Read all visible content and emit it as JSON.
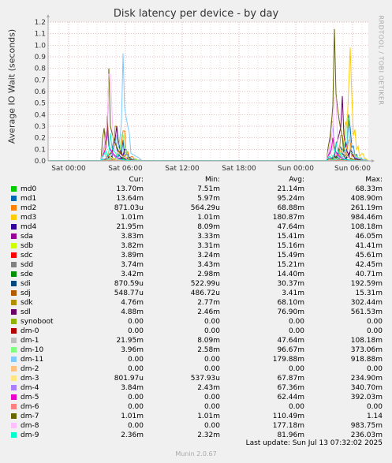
{
  "chart_data": {
    "type": "line",
    "title": "Disk latency per device - by day",
    "ylabel": "Average IO Wait (seconds)",
    "side_label": "RRDTOOL / TOBI OETIKER",
    "ylim": [
      0,
      1.2
    ],
    "yticks": [
      "0.0",
      "0.1",
      "0.2",
      "0.3",
      "0.4",
      "0.5",
      "0.6",
      "0.7",
      "0.8",
      "0.9",
      "1.0",
      "1.1",
      "1.2"
    ],
    "xticks": [
      "Sat 00:00",
      "Sat 06:00",
      "Sat 12:00",
      "Sat 18:00",
      "Sun 00:00",
      "Sun 06:00"
    ],
    "grid": true,
    "legend_columns": [
      "Cur:",
      "Min:",
      "Avg:",
      "Max:"
    ],
    "series": [
      {
        "name": "md0",
        "color": "#00cc00",
        "cur": "13.70m",
        "min": "7.51m",
        "avg": "21.14m",
        "max": "68.33m",
        "p1": 0.03,
        "p2": 0.05
      },
      {
        "name": "md1",
        "color": "#0066b3",
        "cur": "13.64m",
        "min": "5.97m",
        "avg": "95.24m",
        "max": "408.90m",
        "p1": 0.18,
        "p2": 0.4
      },
      {
        "name": "md2",
        "color": "#ff8000",
        "cur": "871.03u",
        "min": "564.29u",
        "avg": "68.88m",
        "max": "261.19m",
        "p1": 0.26,
        "p2": 0.18
      },
      {
        "name": "md3",
        "color": "#ffcc00",
        "cur": "1.01m",
        "min": "1.01m",
        "avg": "180.87m",
        "max": "984.46m",
        "p1": 0.05,
        "p2": 0.98
      },
      {
        "name": "md4",
        "color": "#330099",
        "cur": "21.95m",
        "min": "8.09m",
        "avg": "47.64m",
        "max": "108.18m",
        "p1": 0.1,
        "p2": 0.08
      },
      {
        "name": "sda",
        "color": "#990099",
        "cur": "3.83m",
        "min": "3.33m",
        "avg": "15.41m",
        "max": "46.05m",
        "p1": 0.04,
        "p2": 0.03
      },
      {
        "name": "sdb",
        "color": "#ccff00",
        "cur": "3.82m",
        "min": "3.31m",
        "avg": "15.16m",
        "max": "41.41m",
        "p1": 0.04,
        "p2": 0.03
      },
      {
        "name": "sdc",
        "color": "#ff0000",
        "cur": "3.89m",
        "min": "3.24m",
        "avg": "15.49m",
        "max": "45.61m",
        "p1": 0.04,
        "p2": 0.03
      },
      {
        "name": "sdd",
        "color": "#808080",
        "cur": "3.74m",
        "min": "3.43m",
        "avg": "15.21m",
        "max": "42.45m",
        "p1": 0.04,
        "p2": 0.03
      },
      {
        "name": "sde",
        "color": "#008f00",
        "cur": "3.42m",
        "min": "2.98m",
        "avg": "14.40m",
        "max": "40.71m",
        "p1": 0.04,
        "p2": 0.03
      },
      {
        "name": "sdi",
        "color": "#00487d",
        "cur": "870.59u",
        "min": "522.99u",
        "avg": "30.37m",
        "max": "192.59m",
        "p1": 0.19,
        "p2": 0.12
      },
      {
        "name": "sdj",
        "color": "#b35a00",
        "cur": "548.77u",
        "min": "486.72u",
        "avg": "3.41m",
        "max": "15.31m",
        "p1": 0.01,
        "p2": 0.01
      },
      {
        "name": "sdk",
        "color": "#b38f00",
        "cur": "4.76m",
        "min": "2.77m",
        "avg": "68.10m",
        "max": "302.44m",
        "p1": 0.3,
        "p2": 0.22
      },
      {
        "name": "sdl",
        "color": "#6b006b",
        "cur": "4.88m",
        "min": "2.46m",
        "avg": "76.90m",
        "max": "561.53m",
        "p1": 0.3,
        "p2": 0.56
      },
      {
        "name": "synoboot",
        "color": "#8fb300",
        "cur": "0.00",
        "min": "0.00",
        "avg": "0.00",
        "max": "0.00",
        "p1": 0,
        "p2": 0
      },
      {
        "name": "dm-0",
        "color": "#b30000",
        "cur": "0.00",
        "min": "0.00",
        "avg": "0.00",
        "max": "0.00",
        "p1": 0,
        "p2": 0
      },
      {
        "name": "dm-1",
        "color": "#bebebe",
        "cur": "21.95m",
        "min": "8.09m",
        "avg": "47.64m",
        "max": "108.18m",
        "p1": 0.1,
        "p2": 0.08
      },
      {
        "name": "dm-10",
        "color": "#80ff80",
        "cur": "3.96m",
        "min": "2.58m",
        "avg": "96.67m",
        "max": "373.06m",
        "p1": 0.23,
        "p2": 0.37
      },
      {
        "name": "dm-11",
        "color": "#80c9ff",
        "cur": "0.00",
        "min": "0.00",
        "avg": "179.88m",
        "max": "918.88m",
        "p1": 0.93,
        "p2": 0.3
      },
      {
        "name": "dm-2",
        "color": "#ffc080",
        "cur": "0.00",
        "min": "0.00",
        "avg": "0.00",
        "max": "0.00",
        "p1": 0,
        "p2": 0
      },
      {
        "name": "dm-3",
        "color": "#ffe680",
        "cur": "801.97u",
        "min": "537.93u",
        "avg": "67.87m",
        "max": "234.90m",
        "p1": 0.2,
        "p2": 0.23
      },
      {
        "name": "dm-4",
        "color": "#aa80ff",
        "cur": "3.84m",
        "min": "2.43m",
        "avg": "67.36m",
        "max": "340.70m",
        "p1": 0.25,
        "p2": 0.34
      },
      {
        "name": "dm-5",
        "color": "#ee00cc",
        "cur": "0.00",
        "min": "0.00",
        "avg": "62.44m",
        "max": "392.03m",
        "p1": 0.39,
        "p2": 0.2
      },
      {
        "name": "dm-6",
        "color": "#ff8080",
        "cur": "0.00",
        "min": "0.00",
        "avg": "0.00",
        "max": "0.00",
        "p1": 0,
        "p2": 0
      },
      {
        "name": "dm-7",
        "color": "#666600",
        "cur": "1.01m",
        "min": "1.01m",
        "avg": "110.49m",
        "max": "1.14",
        "p1": 0.8,
        "p2": 1.14
      },
      {
        "name": "dm-8",
        "color": "#ffbfff",
        "cur": "0.00",
        "min": "0.00",
        "avg": "177.18m",
        "max": "983.75m",
        "p1": 0.75,
        "p2": 0.55
      },
      {
        "name": "dm-9",
        "color": "#00ffcc",
        "cur": "2.36m",
        "min": "2.32m",
        "avg": "81.96m",
        "max": "236.03m",
        "p1": 0.24,
        "p2": 0.16
      }
    ]
  },
  "footer": {
    "last_update": "Last update: Sun Jul 13 07:32:02 2025",
    "munin": "Munin 2.0.67"
  }
}
